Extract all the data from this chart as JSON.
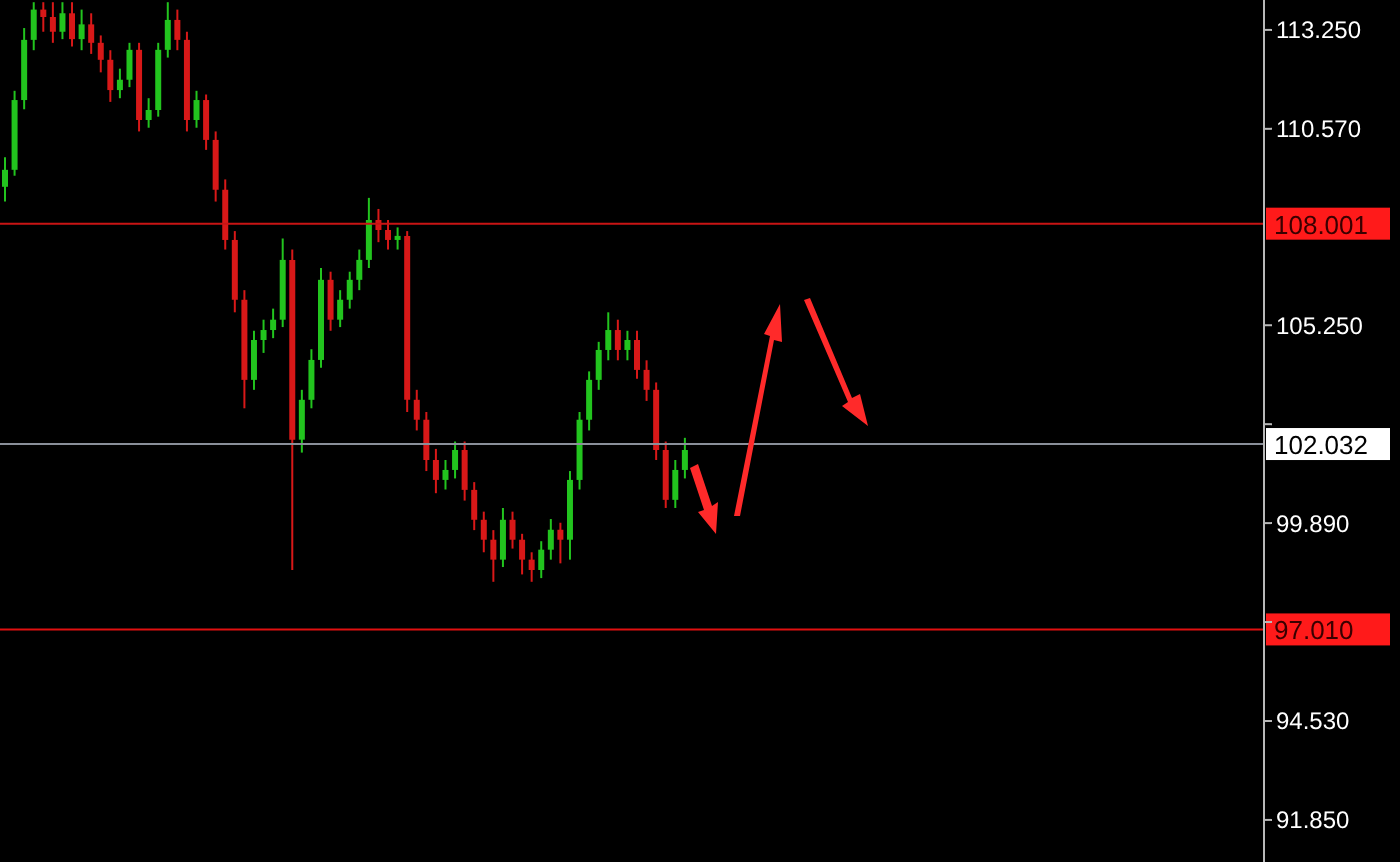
{
  "chart_data": {
    "type": "candlestick",
    "tick_labels": "y",
    "categories": [
      null,
      null,
      null,
      null,
      null,
      null,
      null,
      null,
      null,
      null,
      null,
      null,
      null,
      null,
      null,
      null,
      null,
      null,
      null,
      null,
      null,
      null,
      null,
      null,
      null,
      null,
      null,
      null,
      null,
      null,
      null,
      null,
      null,
      null,
      null,
      null,
      null,
      null,
      null,
      null,
      null,
      null,
      null,
      null,
      null,
      null,
      null,
      null,
      null,
      null,
      null,
      null,
      null,
      null,
      null,
      null,
      null,
      null,
      null,
      null,
      null,
      null,
      null,
      null,
      null,
      null,
      null,
      null,
      null,
      null,
      null,
      null,
      null,
      null,
      null,
      null,
      null,
      null,
      null,
      null,
      null,
      null,
      null,
      null,
      null,
      null,
      null,
      null,
      null,
      null,
      null,
      null,
      null,
      null,
      null,
      null,
      null,
      null,
      null,
      null,
      null,
      null,
      null,
      null,
      null,
      null,
      null,
      null,
      null,
      null,
      null,
      null,
      null,
      null,
      null,
      null,
      null,
      null,
      null,
      null,
      null,
      null,
      null,
      null,
      null,
      null,
      null,
      null,
      null,
      null,
      null,
      null
    ],
    "ohlc": [
      [
        109.0,
        109.8,
        108.6,
        109.46
      ],
      [
        109.46,
        111.6,
        109.3,
        111.35
      ],
      [
        111.35,
        113.3,
        111.1,
        112.98
      ],
      [
        112.98,
        114.0,
        112.7,
        113.8
      ],
      [
        113.8,
        114.0,
        113.2,
        113.6
      ],
      [
        113.6,
        114.0,
        112.9,
        113.2
      ],
      [
        113.2,
        114.0,
        113.0,
        113.7
      ],
      [
        113.7,
        114.0,
        112.8,
        113.0
      ],
      [
        113.0,
        113.8,
        112.7,
        113.4
      ],
      [
        113.4,
        113.7,
        112.6,
        112.9
      ],
      [
        112.9,
        113.1,
        112.1,
        112.44
      ],
      [
        112.44,
        112.7,
        111.3,
        111.62
      ],
      [
        111.62,
        112.2,
        111.4,
        111.9
      ],
      [
        111.9,
        112.9,
        111.7,
        112.71
      ],
      [
        112.71,
        112.9,
        110.5,
        110.81
      ],
      [
        110.81,
        111.4,
        110.6,
        111.08
      ],
      [
        111.08,
        112.9,
        110.9,
        112.71
      ],
      [
        112.71,
        114.0,
        112.5,
        113.52
      ],
      [
        113.52,
        113.8,
        112.7,
        112.98
      ],
      [
        112.98,
        113.2,
        110.5,
        110.81
      ],
      [
        110.81,
        111.6,
        110.6,
        111.35
      ],
      [
        111.35,
        111.5,
        110.0,
        110.27
      ],
      [
        110.27,
        110.5,
        108.6,
        108.92
      ],
      [
        108.92,
        109.2,
        107.3,
        107.56
      ],
      [
        107.56,
        107.8,
        105.6,
        105.94
      ],
      [
        105.94,
        106.2,
        103.0,
        103.77
      ],
      [
        103.77,
        105.1,
        103.5,
        104.85
      ],
      [
        104.85,
        105.4,
        104.5,
        105.12
      ],
      [
        105.12,
        105.7,
        104.9,
        105.4
      ],
      [
        105.4,
        107.6,
        105.2,
        107.02
      ],
      [
        107.02,
        107.3,
        98.62,
        102.15
      ],
      [
        102.15,
        103.5,
        101.8,
        103.23
      ],
      [
        103.23,
        104.6,
        103.0,
        104.31
      ],
      [
        104.31,
        106.8,
        104.1,
        106.48
      ],
      [
        106.48,
        106.7,
        105.1,
        105.4
      ],
      [
        105.4,
        106.2,
        105.2,
        105.94
      ],
      [
        105.94,
        106.7,
        105.7,
        106.48
      ],
      [
        106.48,
        107.3,
        106.2,
        107.02
      ],
      [
        107.02,
        108.7,
        106.8,
        108.1
      ],
      [
        108.1,
        108.4,
        107.5,
        107.83
      ],
      [
        107.83,
        108.1,
        107.3,
        107.56
      ],
      [
        107.56,
        107.9,
        107.3,
        107.67
      ],
      [
        107.67,
        107.8,
        102.9,
        103.23
      ],
      [
        103.23,
        103.5,
        102.4,
        102.69
      ],
      [
        102.69,
        102.9,
        101.3,
        101.6
      ],
      [
        101.6,
        101.9,
        100.7,
        101.06
      ],
      [
        101.06,
        101.6,
        100.8,
        101.33
      ],
      [
        101.33,
        102.1,
        101.1,
        101.87
      ],
      [
        101.87,
        102.1,
        100.5,
        100.79
      ],
      [
        100.79,
        101.0,
        99.7,
        99.98
      ],
      [
        99.98,
        100.2,
        99.1,
        99.44
      ],
      [
        99.44,
        99.7,
        98.3,
        98.9
      ],
      [
        98.9,
        100.3,
        98.7,
        99.98
      ],
      [
        99.98,
        100.2,
        99.2,
        99.44
      ],
      [
        99.44,
        99.6,
        98.5,
        98.9
      ],
      [
        98.9,
        99.1,
        98.3,
        98.62
      ],
      [
        98.62,
        99.4,
        98.4,
        99.17
      ],
      [
        99.17,
        100.0,
        98.9,
        99.71
      ],
      [
        99.71,
        99.9,
        98.8,
        99.44
      ],
      [
        99.44,
        101.3,
        98.9,
        101.06
      ],
      [
        101.06,
        102.9,
        100.8,
        102.69
      ],
      [
        102.69,
        104.0,
        102.4,
        103.77
      ],
      [
        103.77,
        104.8,
        103.5,
        104.58
      ],
      [
        104.58,
        105.6,
        104.3,
        105.12
      ],
      [
        105.12,
        105.4,
        104.3,
        104.58
      ],
      [
        104.58,
        105.1,
        104.3,
        104.85
      ],
      [
        104.85,
        105.1,
        103.8,
        104.04
      ],
      [
        104.04,
        104.3,
        103.2,
        103.5
      ],
      [
        103.5,
        103.7,
        101.6,
        101.87
      ],
      [
        101.87,
        102.1,
        100.3,
        100.52
      ],
      [
        100.52,
        101.6,
        100.3,
        101.33
      ],
      [
        101.33,
        102.2,
        101.1,
        101.87
      ],
      null,
      null,
      null,
      null,
      null,
      null,
      null,
      null,
      null,
      null,
      null,
      null,
      null,
      null,
      null,
      null,
      null,
      null,
      null,
      null,
      null,
      null,
      null,
      null,
      null,
      null,
      null,
      null,
      null,
      null,
      null,
      null,
      null,
      null,
      null,
      null,
      null,
      null,
      null,
      null,
      null,
      null,
      null,
      null,
      null,
      null,
      null,
      null,
      null,
      null,
      null,
      null,
      null,
      null,
      null,
      null,
      null,
      null,
      null,
      null
    ],
    "ylim": [
      90.71,
      114.06
    ],
    "yticks": [
      {
        "value": 113.25,
        "label": "113.250"
      },
      {
        "value": 110.57,
        "label": "110.570"
      },
      {
        "value": 105.25,
        "label": "105.250"
      },
      {
        "value": 102.57,
        "label": null
      },
      {
        "value": 99.89,
        "label": "99.890"
      },
      {
        "value": 97.21,
        "label": null
      },
      {
        "value": 94.53,
        "label": "94.530"
      },
      {
        "value": 91.85,
        "label": "91.850"
      }
    ],
    "ref_lines": [
      {
        "axis": "y",
        "value": 108.001,
        "label": "108.001",
        "color": "#c81414"
      },
      {
        "axis": "y",
        "value": 102.032,
        "label": "102.032",
        "color": "#8a8f99"
      },
      {
        "axis": "y",
        "value": 97.01,
        "label": "97.010",
        "color": "#e01010"
      }
    ]
  }
}
